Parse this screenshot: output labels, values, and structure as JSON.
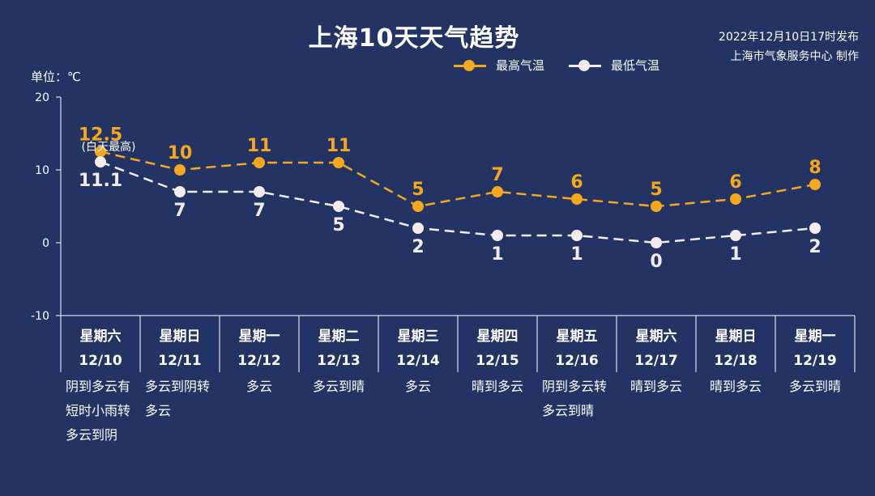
{
  "header": {
    "title": "上海10天天气趋势",
    "issued_line1": "2022年12月10日17时发布",
    "issued_line2": "上海市气象服务中心 制作",
    "unit": "单位：℃"
  },
  "legend": {
    "high_label": "最高气温",
    "low_label": "最低气温"
  },
  "colors": {
    "background": "#233464",
    "high": "#f5a81c",
    "low": "#f4ecec",
    "axis": "#ffffff"
  },
  "chart_data": {
    "type": "line",
    "title": "上海10天天气趋势",
    "ylabel": "单位：℃",
    "ylim": [
      -10,
      20
    ],
    "yticks": [
      20,
      10,
      0,
      -10
    ],
    "grid": false,
    "legend_position": "top-right",
    "categories": [
      "12/10",
      "12/11",
      "12/12",
      "12/13",
      "12/14",
      "12/15",
      "12/16",
      "12/17",
      "12/18",
      "12/19"
    ],
    "weekdays": [
      "星期六",
      "星期日",
      "星期一",
      "星期二",
      "星期三",
      "星期四",
      "星期五",
      "星期六",
      "星期日",
      "星期一"
    ],
    "conditions": [
      [
        "阴到多云有",
        "短时小雨转",
        "多云到阴"
      ],
      [
        "多云到阴转",
        "多云"
      ],
      [
        "多云"
      ],
      [
        "多云到晴"
      ],
      [
        "多云"
      ],
      [
        "晴到多云"
      ],
      [
        "阴到多云转",
        "多云到晴"
      ],
      [
        "晴到多云"
      ],
      [
        "晴到多云"
      ],
      [
        "多云到晴"
      ]
    ],
    "series": [
      {
        "name": "最高气温",
        "values": [
          12.5,
          10,
          11,
          11,
          5,
          7,
          6,
          5,
          6,
          8
        ],
        "labels": [
          "12.5",
          "10",
          "11",
          "11",
          "5",
          "7",
          "6",
          "5",
          "6",
          "8"
        ]
      },
      {
        "name": "最低气温",
        "values": [
          11.1,
          7,
          7,
          5,
          2,
          1,
          1,
          0,
          1,
          2
        ],
        "labels": [
          "11.1",
          "7",
          "7",
          "5",
          "2",
          "1",
          "1",
          "0",
          "1",
          "2"
        ]
      }
    ],
    "annotation": "(白天最高)"
  }
}
